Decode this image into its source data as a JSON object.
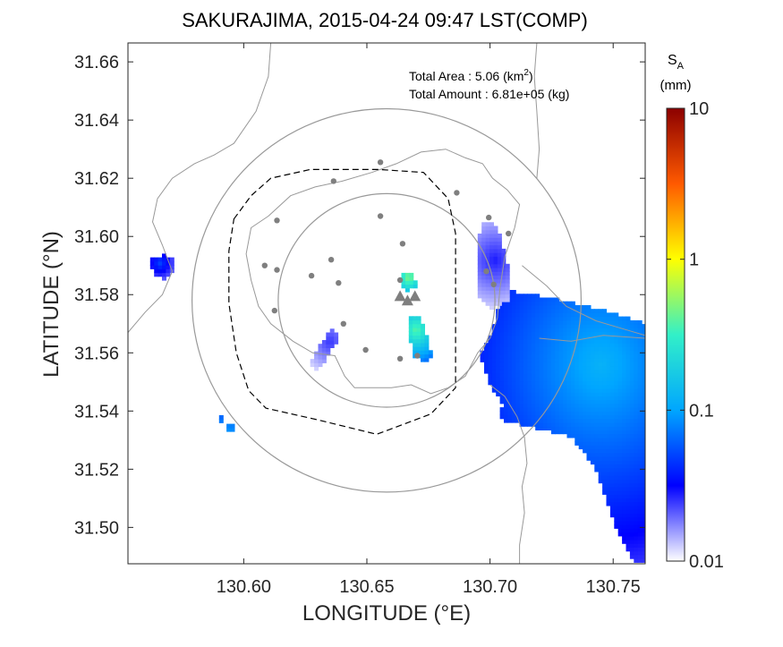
{
  "chart_data": {
    "type": "heatmap",
    "title": "SAKURAJIMA, 2015-04-24 09:47 LST(COMP)",
    "xlabel": "LONGITUDE (°E)",
    "ylabel": "LATITUDE (°N)",
    "xlim": [
      130.553,
      130.763
    ],
    "ylim": [
      31.4875,
      31.6665
    ],
    "x_ticks": [
      130.6,
      130.65,
      130.7,
      130.75
    ],
    "x_tick_labels": [
      "130.60",
      "130.65",
      "130.70",
      "130.75"
    ],
    "y_ticks": [
      31.5,
      31.52,
      31.54,
      31.56,
      31.58,
      31.6,
      31.62,
      31.64,
      31.66
    ],
    "y_tick_labels": [
      "31.50",
      "31.52",
      "31.54",
      "31.56",
      "31.58",
      "31.60",
      "31.62",
      "31.64",
      "31.66"
    ],
    "info": {
      "area_label": "Total Area   : 5.06 (km",
      "area_sup": "2",
      "area_tail": ")",
      "amount_label": "Total Amount : 6.81e+05 (kg)"
    },
    "colorbar": {
      "label_main": "S",
      "label_sub": "A",
      "unit": "(mm)",
      "scale": "log",
      "range": [
        0.01,
        10
      ],
      "ticks": [
        0.01,
        0.1,
        1,
        10
      ],
      "tick_labels": [
        "0.01",
        "0.1",
        "1",
        "10"
      ]
    },
    "range_circles": [
      {
        "center": [
          130.658,
          31.578
        ],
        "radius_deg": 0.079
      },
      {
        "center": [
          130.658,
          31.578
        ],
        "radius_deg": 0.044
      }
    ],
    "volcano_vents": [
      [
        130.6635,
        31.5795
      ],
      [
        130.6665,
        31.578
      ],
      [
        130.6695,
        31.5795
      ]
    ],
    "stations": [
      [
        130.6555,
        31.6255
      ],
      [
        130.6365,
        31.619
      ],
      [
        130.6865,
        31.615
      ],
      [
        130.6135,
        31.6055
      ],
      [
        130.6555,
        31.607
      ],
      [
        130.6995,
        31.6065
      ],
      [
        130.7075,
        31.601
      ],
      [
        130.6645,
        31.5975
      ],
      [
        130.6085,
        31.59
      ],
      [
        130.6135,
        31.5885
      ],
      [
        130.6355,
        31.592
      ],
      [
        130.6275,
        31.5865
      ],
      [
        130.6385,
        31.584
      ],
      [
        130.6635,
        31.585
      ],
      [
        130.6985,
        31.588
      ],
      [
        130.7015,
        31.5835
      ],
      [
        130.6125,
        31.5745
      ],
      [
        130.6405,
        31.57
      ],
      [
        130.6495,
        31.561
      ],
      [
        130.6635,
        31.558
      ],
      [
        130.6705,
        31.559
      ]
    ],
    "ash_patches": [
      {
        "name": "east-plume",
        "polygon": [
          [
            130.704,
            31.582
          ],
          [
            130.724,
            31.579
          ],
          [
            130.745,
            31.575
          ],
          [
            130.763,
            31.57
          ],
          [
            130.763,
            31.488
          ],
          [
            130.758,
            31.488
          ],
          [
            130.752,
            31.498
          ],
          [
            130.748,
            31.508
          ],
          [
            130.743,
            31.52
          ],
          [
            130.733,
            31.531
          ],
          [
            130.72,
            31.534
          ],
          [
            130.704,
            31.537
          ],
          [
            130.705,
            31.543
          ],
          [
            130.7,
            31.549
          ],
          [
            130.696,
            31.559
          ],
          [
            130.7,
            31.566
          ],
          [
            130.703,
            31.573
          ]
        ],
        "peak": [
          130.745,
          31.556
        ],
        "peak_value": 0.12,
        "edge_value": 0.025
      },
      {
        "name": "northeast-strip",
        "polygon": [
          [
            130.696,
            31.604
          ],
          [
            130.7,
            31.606
          ],
          [
            130.703,
            31.603
          ],
          [
            130.707,
            31.59
          ],
          [
            130.708,
            31.578
          ],
          [
            130.7,
            31.575
          ],
          [
            130.695,
            31.58
          ],
          [
            130.695,
            31.59
          ]
        ],
        "peak": [
          130.702,
          31.592
        ],
        "peak_value": 0.028,
        "edge_value": 0.012
      },
      {
        "name": "west-patch",
        "polygon": [
          [
            130.562,
            31.592
          ],
          [
            130.568,
            31.594
          ],
          [
            130.572,
            31.592
          ],
          [
            130.571,
            31.588
          ],
          [
            130.567,
            31.585
          ],
          [
            130.563,
            31.588
          ]
        ],
        "peak": [
          130.566,
          31.591
        ],
        "peak_value": 0.05,
        "edge_value": 0.02
      },
      {
        "name": "southwest-band",
        "polygon": [
          [
            130.631,
            31.563
          ],
          [
            130.636,
            31.569
          ],
          [
            130.639,
            31.566
          ],
          [
            130.635,
            31.56
          ],
          [
            130.63,
            31.554
          ],
          [
            130.627,
            31.556
          ]
        ],
        "peak": [
          130.635,
          31.564
        ],
        "peak_value": 0.025,
        "edge_value": 0.012
      },
      {
        "name": "north-crater-patch",
        "polygon": [
          [
            130.665,
            31.588
          ],
          [
            130.669,
            31.588
          ],
          [
            130.67,
            31.583
          ],
          [
            130.666,
            31.581
          ],
          [
            130.664,
            31.584
          ]
        ],
        "peak": [
          130.667,
          31.586
        ],
        "peak_value": 0.5,
        "edge_value": 0.15
      },
      {
        "name": "south-crater-patch",
        "polygon": [
          [
            130.667,
            31.573
          ],
          [
            130.672,
            31.572
          ],
          [
            130.674,
            31.566
          ],
          [
            130.677,
            31.558
          ],
          [
            130.673,
            31.557
          ],
          [
            130.669,
            31.559
          ],
          [
            130.667,
            31.566
          ]
        ],
        "peak": [
          130.67,
          31.568
        ],
        "peak_value": 0.4,
        "edge_value": 0.06
      },
      {
        "name": "tiny-southwest-1",
        "polygon": [
          [
            130.59,
            31.538
          ],
          [
            130.592,
            31.538
          ],
          [
            130.592,
            31.536
          ],
          [
            130.59,
            31.536
          ]
        ],
        "peak": [
          130.591,
          31.537
        ],
        "peak_value": 0.08,
        "edge_value": 0.06
      },
      {
        "name": "tiny-southwest-2",
        "polygon": [
          [
            130.593,
            31.535
          ],
          [
            130.596,
            31.535
          ],
          [
            130.596,
            31.533
          ],
          [
            130.593,
            31.533
          ]
        ],
        "peak": [
          130.5945,
          31.534
        ],
        "peak_value": 0.1,
        "edge_value": 0.07
      }
    ],
    "observation_boundary": [
      [
        130.596,
        31.606
      ],
      [
        130.603,
        31.614
      ],
      [
        130.611,
        31.62
      ],
      [
        130.627,
        31.623
      ],
      [
        130.655,
        31.623
      ],
      [
        130.673,
        31.622
      ],
      [
        130.683,
        31.613
      ],
      [
        130.686,
        31.601
      ],
      [
        130.686,
        31.586
      ],
      [
        130.686,
        31.571
      ],
      [
        130.686,
        31.548
      ],
      [
        130.676,
        31.539
      ],
      [
        130.654,
        31.532
      ],
      [
        130.63,
        31.537
      ],
      [
        130.609,
        31.541
      ],
      [
        130.602,
        31.547
      ],
      [
        130.597,
        31.56
      ],
      [
        130.594,
        31.577
      ],
      [
        130.594,
        31.595
      ]
    ],
    "coastlines": [
      [
        [
          130.611,
          31.6665
        ],
        [
          130.61,
          31.655
        ],
        [
          130.605,
          31.643
        ],
        [
          130.596,
          31.632
        ],
        [
          130.588,
          31.628
        ],
        [
          130.58,
          31.625
        ],
        [
          130.571,
          31.62
        ],
        [
          130.565,
          31.613
        ],
        [
          130.563,
          31.605
        ],
        [
          130.567,
          31.597
        ],
        [
          130.571,
          31.588
        ],
        [
          130.567,
          31.58
        ],
        [
          130.56,
          31.574
        ],
        [
          130.553,
          31.567
        ]
      ],
      [
        [
          130.61,
          31.607
        ],
        [
          130.603,
          31.603
        ],
        [
          130.601,
          31.594
        ],
        [
          130.603,
          31.585
        ],
        [
          130.606,
          31.576
        ],
        [
          130.611,
          31.57
        ],
        [
          130.62,
          31.564
        ],
        [
          130.628,
          31.56
        ],
        [
          130.637,
          31.559
        ],
        [
          130.641,
          31.552
        ],
        [
          130.645,
          31.548
        ],
        [
          130.653,
          31.548
        ],
        [
          130.66,
          31.548
        ],
        [
          130.668,
          31.549
        ],
        [
          130.676,
          31.546
        ],
        [
          130.683,
          31.548
        ],
        [
          130.69,
          31.552
        ],
        [
          130.695,
          31.56
        ],
        [
          130.7,
          31.565
        ],
        [
          130.703,
          31.572
        ],
        [
          130.704,
          31.582
        ],
        [
          130.706,
          31.593
        ],
        [
          130.71,
          31.603
        ],
        [
          130.712,
          31.611
        ],
        [
          130.707,
          31.616
        ],
        [
          130.701,
          31.62
        ],
        [
          130.697,
          31.625
        ],
        [
          130.69,
          31.627
        ],
        [
          130.682,
          31.63
        ],
        [
          130.672,
          31.629
        ],
        [
          130.662,
          31.625
        ],
        [
          130.652,
          31.622
        ],
        [
          130.64,
          31.619
        ],
        [
          130.629,
          31.617
        ],
        [
          130.619,
          31.614
        ],
        [
          130.61,
          31.607
        ]
      ],
      [
        [
          130.7,
          31.549
        ],
        [
          130.706,
          31.545
        ],
        [
          130.711,
          31.538
        ],
        [
          130.714,
          31.531
        ],
        [
          130.715,
          31.522
        ],
        [
          130.713,
          31.514
        ],
        [
          130.714,
          31.505
        ],
        [
          130.712,
          31.494
        ],
        [
          130.712,
          31.4875
        ]
      ],
      [
        [
          130.713,
          31.59
        ],
        [
          130.723,
          31.583
        ],
        [
          130.731,
          31.576
        ],
        [
          130.743,
          31.571
        ],
        [
          130.755,
          31.568
        ],
        [
          130.763,
          31.566
        ]
      ],
      [
        [
          130.719,
          31.6665
        ],
        [
          130.718,
          31.655
        ],
        [
          130.719,
          31.643
        ],
        [
          130.72,
          31.63
        ],
        [
          130.719,
          31.62
        ]
      ],
      [
        [
          130.72,
          31.565
        ],
        [
          130.733,
          31.564
        ],
        [
          130.746,
          31.566
        ],
        [
          130.763,
          31.565
        ]
      ]
    ]
  }
}
